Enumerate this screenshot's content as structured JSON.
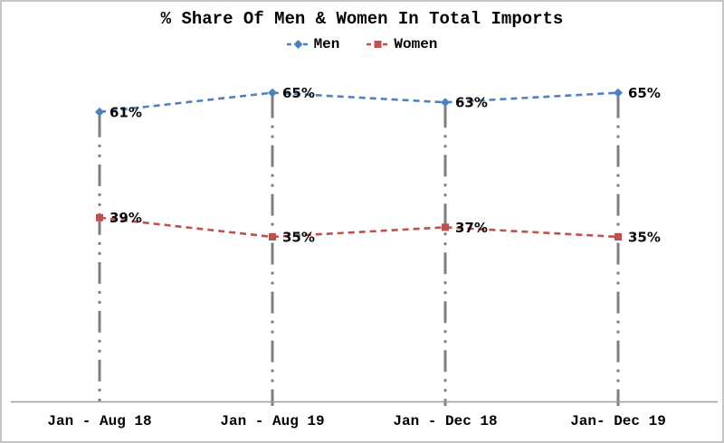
{
  "window": {
    "background": "#ffffff",
    "border_color": "#c6c6c6"
  },
  "chart_data": {
    "type": "line",
    "title": "% Share Of Men & Women In Total Imports",
    "categories": [
      "Jan - Aug 18",
      "Jan - Aug 19",
      "Jan - Dec 18",
      "Jan- Dec 19"
    ],
    "series": [
      {
        "name": "Men",
        "values": [
          61,
          65,
          63,
          65
        ],
        "color": "#4F81BD",
        "marker": "diamond",
        "line_style": "dashed"
      },
      {
        "name": "Women",
        "values": [
          39,
          35,
          37,
          35
        ],
        "color": "#C0504D",
        "marker": "square",
        "line_style": "dashed"
      }
    ],
    "data_labels": true,
    "data_label_suffix": "%",
    "xlabel": "",
    "ylabel": "",
    "ylim": [
      0,
      70
    ],
    "y_axis_visible": false,
    "grid": "vertical-drop-lines-dash-dot",
    "gridline_color": "#7f7f7f",
    "axis_line_color": "#9d9d9d",
    "legend_position": "top",
    "text_color": "#000000"
  }
}
